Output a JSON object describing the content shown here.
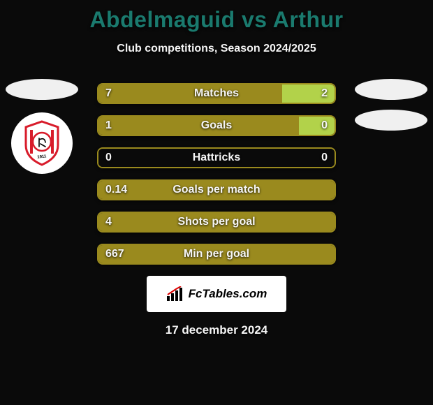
{
  "title": "Abdelmaguid vs Arthur",
  "title_color": "#1a7a6e",
  "subtitle": "Club competitions, Season 2024/2025",
  "subtitle_color": "#f5f5f5",
  "background_color": "#0a0a0a",
  "oval_color": "#f0f0f0",
  "left_player_badge": {
    "bg": "#ffffff",
    "stripe_color": "#d81b2a"
  },
  "bars": [
    {
      "label": "Matches",
      "left_value": "7",
      "right_value": "2",
      "left_pct": 77.8,
      "right_pct": 22.2,
      "left_color": "#9a8a1e",
      "right_color": "#b2d24a",
      "border_color": "#9a8a1e",
      "label_color": "#f5f5f5",
      "value_color": "#f5f5f5"
    },
    {
      "label": "Goals",
      "left_value": "1",
      "right_value": "0",
      "left_pct": 85,
      "right_pct": 15,
      "left_color": "#9a8a1e",
      "right_color": "#b2d24a",
      "border_color": "#9a8a1e",
      "label_color": "#f5f5f5",
      "value_color": "#f5f5f5"
    },
    {
      "label": "Hattricks",
      "left_value": "0",
      "right_value": "0",
      "left_pct": 50,
      "right_pct": 50,
      "left_color": "#0a0a0a",
      "right_color": "#0a0a0a",
      "border_color": "#9a8a1e",
      "label_color": "#f5f5f5",
      "value_color": "#f5f5f5"
    },
    {
      "label": "Goals per match",
      "left_value": "0.14",
      "right_value": "",
      "left_pct": 100,
      "right_pct": 0,
      "left_color": "#9a8a1e",
      "right_color": "#9a8a1e",
      "border_color": "#9a8a1e",
      "label_color": "#f5f5f5",
      "value_color": "#f5f5f5"
    },
    {
      "label": "Shots per goal",
      "left_value": "4",
      "right_value": "",
      "left_pct": 100,
      "right_pct": 0,
      "left_color": "#9a8a1e",
      "right_color": "#9a8a1e",
      "border_color": "#9a8a1e",
      "label_color": "#f5f5f5",
      "value_color": "#f5f5f5"
    },
    {
      "label": "Min per goal",
      "left_value": "667",
      "right_value": "",
      "left_pct": 100,
      "right_pct": 0,
      "left_color": "#9a8a1e",
      "right_color": "#9a8a1e",
      "border_color": "#9a8a1e",
      "label_color": "#f5f5f5",
      "value_color": "#f5f5f5"
    }
  ],
  "footer_label": "FcTables.com",
  "date": "17 december 2024",
  "date_color": "#f5f5f5"
}
